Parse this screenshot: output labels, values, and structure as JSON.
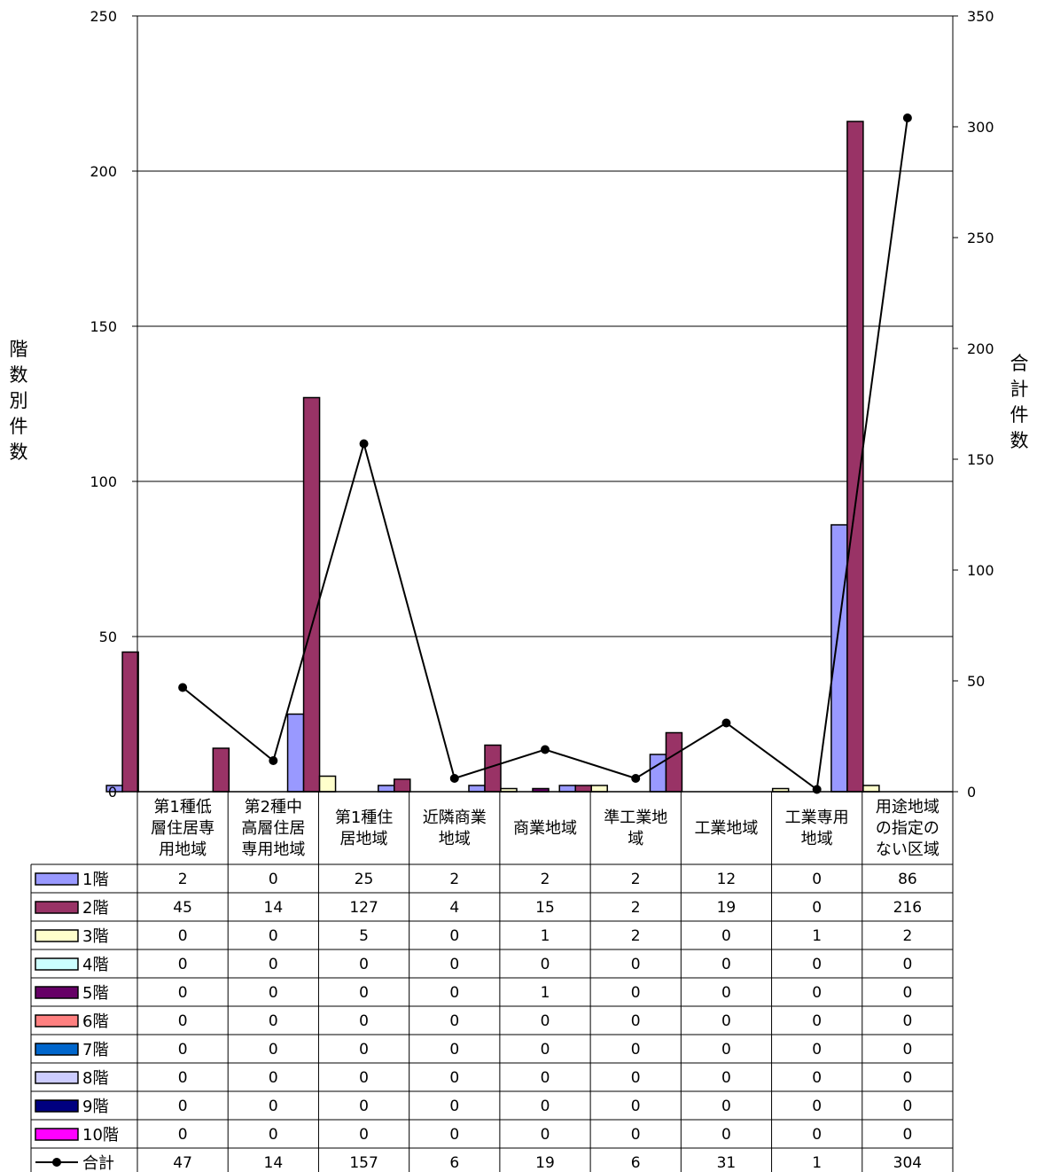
{
  "chart_data": {
    "type": "bar",
    "categories": [
      "第1種低層住居専用地域",
      "第2種中高層住居専用地域",
      "第1種住居地域",
      "近隣商業地域",
      "商業地域",
      "準工業地域",
      "工業地域",
      "工業専用地域",
      "用途地域の指定のない区域"
    ],
    "category_lines": [
      [
        "第1種低",
        "層住居専",
        "用地域"
      ],
      [
        "第2種中",
        "高層住居",
        "専用地域"
      ],
      [
        "第1種住",
        "居地域"
      ],
      [
        "近隣商業",
        "地域"
      ],
      [
        "商業地域"
      ],
      [
        "準工業地",
        "域"
      ],
      [
        "工業地域"
      ],
      [
        "工業専用",
        "地域"
      ],
      [
        "用途地域",
        "の指定の",
        "ない区域"
      ]
    ],
    "series": [
      {
        "name": "1階",
        "color": "#9999ff",
        "values": [
          2,
          0,
          25,
          2,
          2,
          2,
          12,
          0,
          86
        ]
      },
      {
        "name": "2階",
        "color": "#993366",
        "values": [
          45,
          14,
          127,
          4,
          15,
          2,
          19,
          0,
          216
        ]
      },
      {
        "name": "3階",
        "color": "#ffffcc",
        "values": [
          0,
          0,
          5,
          0,
          1,
          2,
          0,
          1,
          2
        ]
      },
      {
        "name": "4階",
        "color": "#ccffff",
        "values": [
          0,
          0,
          0,
          0,
          0,
          0,
          0,
          0,
          0
        ]
      },
      {
        "name": "5階",
        "color": "#660066",
        "values": [
          0,
          0,
          0,
          0,
          1,
          0,
          0,
          0,
          0
        ]
      },
      {
        "name": "6階",
        "color": "#ff8080",
        "values": [
          0,
          0,
          0,
          0,
          0,
          0,
          0,
          0,
          0
        ]
      },
      {
        "name": "7階",
        "color": "#0066cc",
        "values": [
          0,
          0,
          0,
          0,
          0,
          0,
          0,
          0,
          0
        ]
      },
      {
        "name": "8階",
        "color": "#ccccff",
        "values": [
          0,
          0,
          0,
          0,
          0,
          0,
          0,
          0,
          0
        ]
      },
      {
        "name": "9階",
        "color": "#000080",
        "values": [
          0,
          0,
          0,
          0,
          0,
          0,
          0,
          0,
          0
        ]
      },
      {
        "name": "10階",
        "color": "#ff00ff",
        "values": [
          0,
          0,
          0,
          0,
          0,
          0,
          0,
          0,
          0
        ]
      }
    ],
    "total_series": {
      "name": "合計",
      "color": "#000000",
      "values": [
        47,
        14,
        157,
        6,
        19,
        6,
        31,
        1,
        304
      ]
    },
    "ylabel": "階数別件数",
    "y2label": "合計件数",
    "ylim": [
      0,
      250
    ],
    "y2lim": [
      0,
      350
    ],
    "yticks": [
      0,
      50,
      100,
      150,
      200,
      250
    ],
    "y2ticks": [
      0,
      50,
      100,
      150,
      200,
      250,
      300,
      350
    ],
    "grid": true,
    "legend": "data-table"
  }
}
